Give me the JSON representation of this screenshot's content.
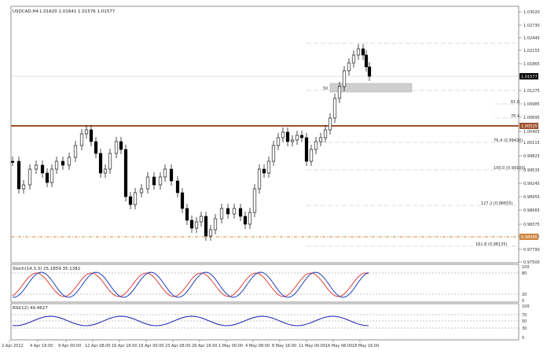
{
  "header": {
    "symbol_title": "USDCAD,H4",
    "ohlc": "1.01620 1.01641 1.01576 1.01577"
  },
  "price_pane": {
    "y_ticks": [
      "1.03020",
      "1.02730",
      "1.02445",
      "1.02155",
      "1.01865",
      "1.01275",
      "1.00985",
      "1.00695",
      "1.00405",
      "1.00115",
      "0.99825",
      "0.99535",
      "0.99245",
      "0.98955",
      "0.98665",
      "0.98375",
      "0.98085",
      "0.97790",
      "0.97500"
    ],
    "current_price": "1.01577",
    "resistance_label": "1.00525",
    "support_label": "0.98085",
    "fib_labels": [
      "50",
      "61.8",
      "76.4",
      "76.4",
      "100",
      "61.8",
      "100",
      "127.2",
      "161.8"
    ],
    "fib_texts": [
      "76.4 (0.99420)",
      "100.0 (0.99100)",
      "127.2 (0.98655)",
      "161.8 (0.98135)"
    ],
    "grid": true
  },
  "stochastic_pane": {
    "title": "Stoch(14,3,3) 25.1859 35.1382",
    "levels": [
      "100",
      "80",
      "20",
      "0"
    ]
  },
  "rsi_pane": {
    "title": "RSI(12) 49.4627",
    "levels": [
      "100",
      "70",
      "50",
      "30",
      "0"
    ]
  },
  "x_axis": {
    "ticks": [
      "2 Apr 2012",
      "4 Apr 16:00",
      "9 Apr 00:00",
      "12 Apr 08:00",
      "16 Apr 16:00",
      "19 Apr 00:00",
      "23 Apr 08:00",
      "26 Apr 16:00",
      "1 May 00:00",
      "4 May 08:00",
      "8 May 16:00",
      "11 May 00:00",
      "16 May 08:00",
      "18 May 16:00"
    ]
  },
  "colors": {
    "bull_candle": "#ffffff",
    "bear_candle": "#000000",
    "resistance_line": "#a0522d",
    "support_line": "#cd853f",
    "stoch_main": "#1f3fbf",
    "stoch_signal": "#e0403a",
    "rsi_line": "#1a1ab0",
    "fib_line": "#bbbbbb"
  }
}
